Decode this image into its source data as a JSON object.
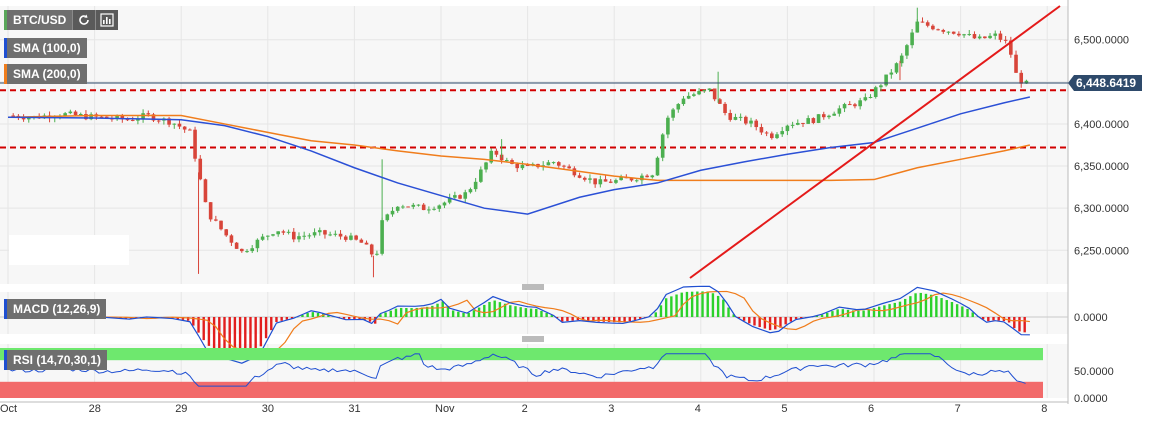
{
  "symbol_bar": {
    "symbol": "BTC/USD",
    "refresh_icon": "refresh-icon",
    "chart_icon": "bar-chart-icon"
  },
  "main_legend": [
    {
      "label": "SMA (100,0)",
      "color": "#1f4fd1"
    },
    {
      "label": "SMA (200,0)",
      "color": "#f07d1c"
    }
  ],
  "macd_legend": {
    "label": "MACD (12,26,9)"
  },
  "rsi_legend": {
    "label": "RSI (14,70,30,1)"
  },
  "price_label": "6,448.6419",
  "colors": {
    "up": "#4caf50",
    "down": "#d8453a",
    "sma100": "#2b50d6",
    "sma200": "#f07d1c",
    "trend": "#e41a1a",
    "level": "#d20000",
    "price_box": "#2e4a6b",
    "rsi_top": "#6ee86e",
    "rsi_bottom": "#f26a6a",
    "macd_line": "#1f4fd1",
    "macd_signal": "#f07d1c"
  },
  "chart_data": [
    {
      "type": "candlestick",
      "title": "BTC/USD",
      "ylim": [
        6210,
        6540
      ],
      "y_ticks": [
        "6,500.0000",
        "6,450.0000",
        "6,400.0000",
        "6,350.0000",
        "6,300.0000",
        "6,250.0000"
      ],
      "x_ticks": [
        "Oct",
        "28",
        "29",
        "30",
        "31",
        "Nov",
        "2",
        "3",
        "4",
        "5",
        "6",
        "7",
        "8"
      ],
      "last_price": 6448.6419,
      "horizontal_levels": [
        6440,
        6372
      ],
      "trend_line": {
        "from": [
          "Nov 4.3",
          6215
        ],
        "to": [
          "Nov 8.5",
          6540
        ]
      },
      "close_path": [
        [
          0,
          6410
        ],
        [
          0.3,
          6408
        ],
        [
          0.6,
          6412
        ],
        [
          1.0,
          6408
        ],
        [
          1.4,
          6405
        ],
        [
          1.6,
          6410
        ],
        [
          1.9,
          6402
        ],
        [
          2.1,
          6390
        ],
        [
          2.3,
          6295
        ],
        [
          2.5,
          6270
        ],
        [
          2.7,
          6248
        ],
        [
          2.9,
          6262
        ],
        [
          3.1,
          6275
        ],
        [
          3.3,
          6266
        ],
        [
          3.6,
          6270
        ],
        [
          3.9,
          6266
        ],
        [
          4.1,
          6258
        ],
        [
          4.25,
          6240
        ],
        [
          4.3,
          6280
        ],
        [
          4.5,
          6305
        ],
        [
          4.8,
          6300
        ],
        [
          5.0,
          6305
        ],
        [
          5.3,
          6318
        ],
        [
          5.5,
          6350
        ],
        [
          5.6,
          6368
        ],
        [
          5.8,
          6352
        ],
        [
          6.0,
          6348
        ],
        [
          6.3,
          6355
        ],
        [
          6.5,
          6345
        ],
        [
          6.8,
          6330
        ],
        [
          7.0,
          6332
        ],
        [
          7.2,
          6335
        ],
        [
          7.45,
          6342
        ],
        [
          7.6,
          6405
        ],
        [
          7.8,
          6432
        ],
        [
          8.1,
          6440
        ],
        [
          8.3,
          6410
        ],
        [
          8.6,
          6400
        ],
        [
          8.8,
          6385
        ],
        [
          9.0,
          6400
        ],
        [
          9.3,
          6405
        ],
        [
          9.6,
          6418
        ],
        [
          9.9,
          6428
        ],
        [
          10.1,
          6450
        ],
        [
          10.3,
          6475
        ],
        [
          10.5,
          6520
        ],
        [
          10.8,
          6512
        ],
        [
          11.0,
          6508
        ],
        [
          11.2,
          6500
        ],
        [
          11.4,
          6505
        ],
        [
          11.55,
          6495
        ],
        [
          11.65,
          6455
        ],
        [
          11.75,
          6447
        ],
        [
          11.8,
          6448.64
        ]
      ],
      "sma100": [
        [
          0,
          6408
        ],
        [
          1.0,
          6407
        ],
        [
          2.0,
          6405
        ],
        [
          2.5,
          6398
        ],
        [
          3.0,
          6385
        ],
        [
          3.5,
          6368
        ],
        [
          4.0,
          6348
        ],
        [
          4.5,
          6330
        ],
        [
          5.0,
          6315
        ],
        [
          5.5,
          6300
        ],
        [
          6.0,
          6293
        ],
        [
          6.6,
          6313
        ],
        [
          7.0,
          6322
        ],
        [
          7.5,
          6330
        ],
        [
          8.0,
          6345
        ],
        [
          8.5,
          6355
        ],
        [
          9.0,
          6364
        ],
        [
          9.5,
          6372
        ],
        [
          10.0,
          6378
        ],
        [
          10.5,
          6395
        ],
        [
          11.0,
          6412
        ],
        [
          11.5,
          6425
        ],
        [
          11.8,
          6432
        ]
      ],
      "sma200": [
        [
          0,
          6408
        ],
        [
          1.0,
          6410
        ],
        [
          2.0,
          6410
        ],
        [
          2.5,
          6400
        ],
        [
          3.0,
          6390
        ],
        [
          3.5,
          6380
        ],
        [
          4.0,
          6375
        ],
        [
          4.5,
          6368
        ],
        [
          5.0,
          6362
        ],
        [
          5.5,
          6358
        ],
        [
          6.0,
          6352
        ],
        [
          6.5,
          6345
        ],
        [
          7.0,
          6338
        ],
        [
          7.5,
          6333
        ],
        [
          8.0,
          6333
        ],
        [
          8.5,
          6333
        ],
        [
          9.0,
          6333
        ],
        [
          9.5,
          6333
        ],
        [
          10.0,
          6334
        ],
        [
          10.5,
          6348
        ],
        [
          11.0,
          6358
        ],
        [
          11.5,
          6368
        ],
        [
          11.8,
          6375
        ]
      ]
    },
    {
      "type": "line",
      "title": "MACD (12,26,9)",
      "ylim": [
        -0.6,
        0.6
      ],
      "y_ticks": [
        "0.0000"
      ]
    },
    {
      "type": "line",
      "title": "RSI (14,70,30,1)",
      "ylim": [
        0,
        100
      ],
      "y_ticks": [
        "50.0000",
        "0.0000"
      ]
    }
  ]
}
